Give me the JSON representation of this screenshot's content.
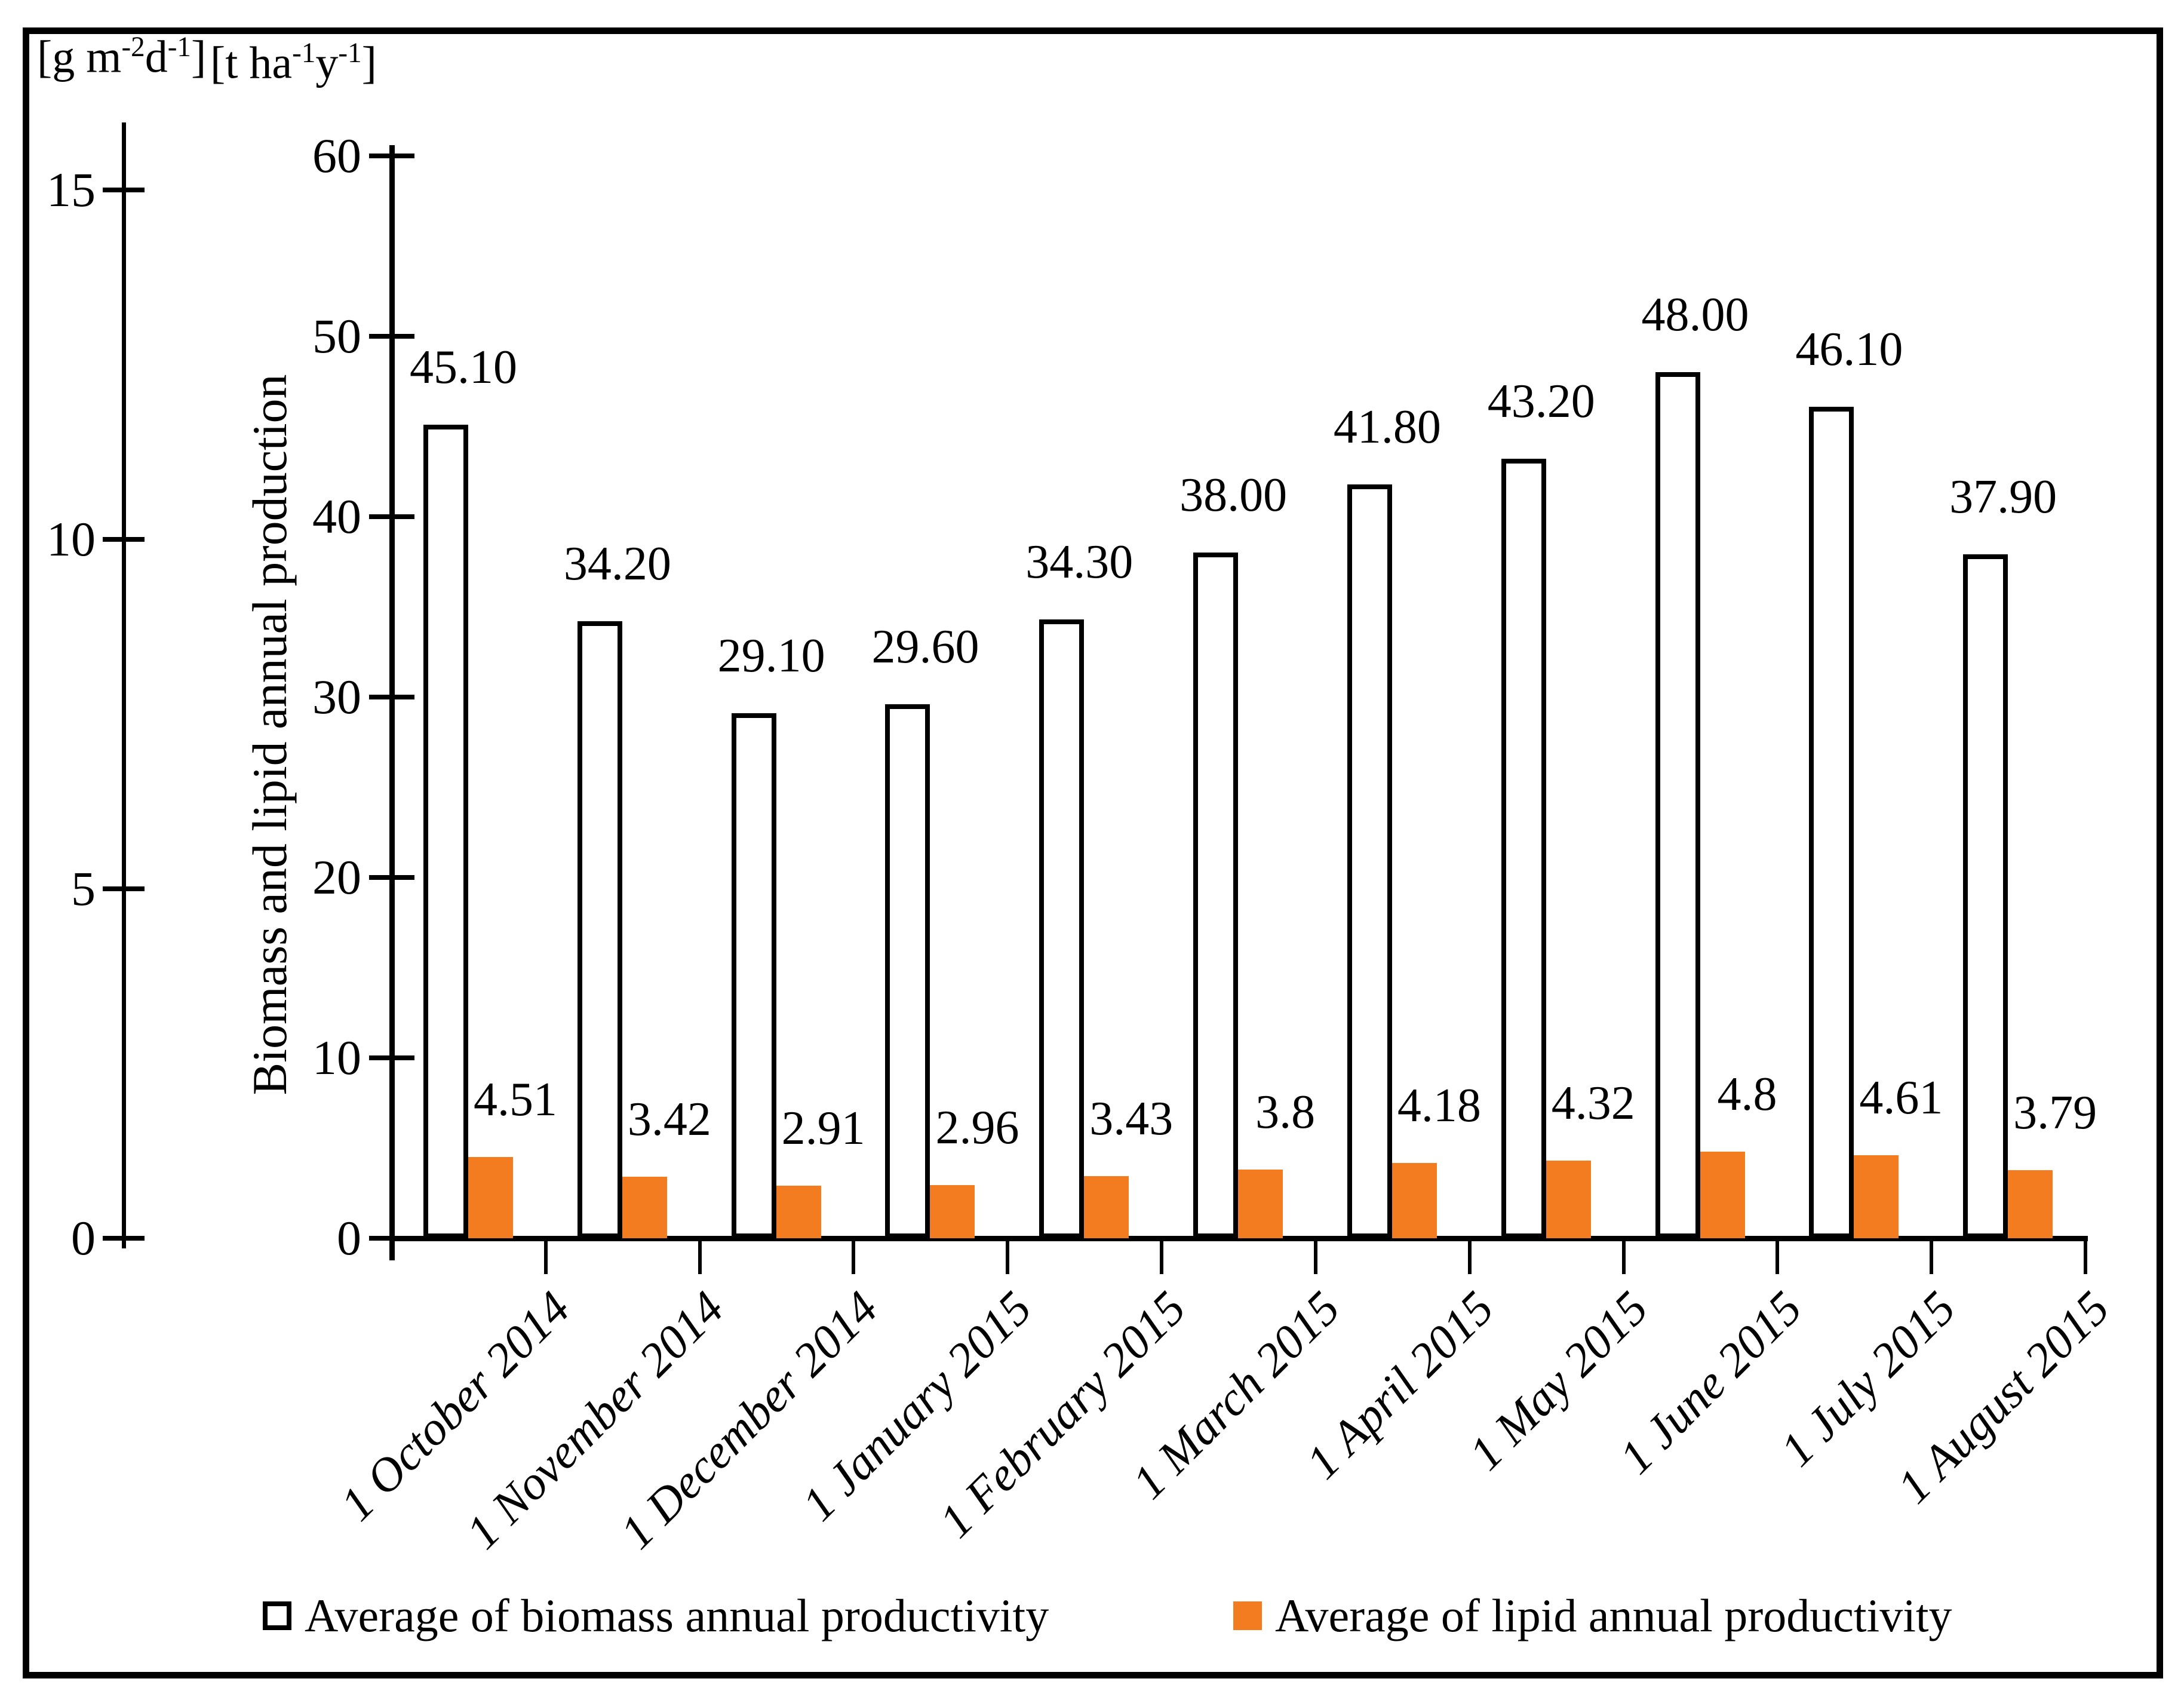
{
  "figure": {
    "y_axis_title": "Biomass and lipid annual production",
    "units_secondary": {
      "pre": "[g m",
      "sup1": "-2",
      "mid": "d",
      "sup2": "-1",
      "post": "]"
    },
    "units_primary": {
      "pre": "[t ha",
      "sup1": "-1",
      "mid": "y",
      "sup2": "-1",
      "post": "]"
    }
  },
  "chart_data": {
    "type": "bar",
    "title": "",
    "xlabel": "",
    "ylabel": "Biomass and lipid annual production",
    "grid": false,
    "legend_position": "bottom",
    "categories": [
      "1 October 2014",
      "1 November 2014",
      "1 December 2014",
      "1 January 2015",
      "1 February 2015",
      "1 March 2015",
      "1 April 2015",
      "1 May 2015",
      "1 June 2015",
      "1 July 2015",
      "1 August 2015"
    ],
    "series": [
      {
        "name": "Average of biomass annual productivity",
        "values": [
          45.1,
          34.2,
          29.1,
          29.6,
          34.3,
          38.0,
          41.8,
          43.2,
          48.0,
          46.1,
          37.9
        ],
        "labels": [
          "45.10",
          "34.20",
          "29.10",
          "29.60",
          "34.30",
          "38.00",
          "41.80",
          "43.20",
          "48.00",
          "46.10",
          "37.90"
        ],
        "fill": "#FFFFFF",
        "border": "#000000"
      },
      {
        "name": "Average of lipid annual productivity",
        "values": [
          4.51,
          3.42,
          2.91,
          2.96,
          3.43,
          3.8,
          4.18,
          4.32,
          4.8,
          4.61,
          3.79
        ],
        "labels": [
          "4.51",
          "3.42",
          "2.91",
          "2.96",
          "3.43",
          "3.8",
          "4.18",
          "4.32",
          "4.8",
          "4.61",
          "3.79"
        ],
        "fill": "#F47C20"
      }
    ],
    "primary_axis": {
      "units": "t ha-1 y-1",
      "ticks": [
        0,
        10,
        20,
        30,
        40,
        50,
        60
      ],
      "range": [
        0,
        60
      ]
    },
    "secondary_axis": {
      "units": "g m-2 d-1",
      "ticks": [
        0,
        5,
        10,
        15
      ],
      "range": [
        0,
        15
      ]
    }
  },
  "legend": {
    "items": [
      {
        "label": "Average of biomass annual productivity"
      },
      {
        "label": "Average of lipid annual productivity"
      }
    ]
  }
}
